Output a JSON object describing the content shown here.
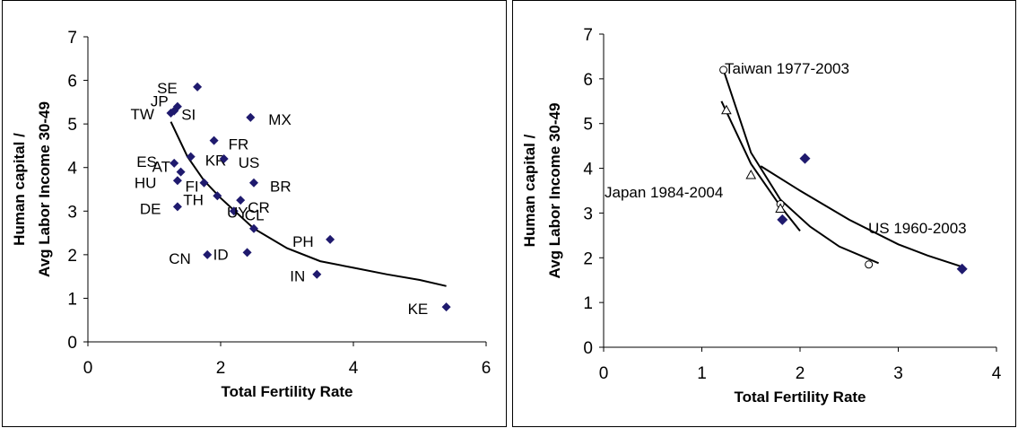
{
  "chart_data": [
    {
      "type": "scatter",
      "xlabel": "Total Fertility Rate",
      "ylabel_lines": [
        "Human capital /",
        "Avg Labor Income 30-49"
      ],
      "xlim": [
        0,
        6
      ],
      "ylim": [
        0,
        7
      ],
      "xticks": [
        "0",
        "2",
        "4",
        "6"
      ],
      "yticks": [
        "0",
        "1",
        "2",
        "3",
        "4",
        "5",
        "6",
        "7"
      ],
      "grid": false,
      "marker_color": "#1f1a6e",
      "points": [
        {
          "label": "SE",
          "x": 1.65,
          "y": 5.85
        },
        {
          "label": "JP",
          "x": 1.35,
          "y": 5.4
        },
        {
          "label": "TW",
          "x": 1.25,
          "y": 5.25
        },
        {
          "label": "SI",
          "x": 1.3,
          "y": 5.3
        },
        {
          "label": "MX",
          "x": 2.45,
          "y": 5.15
        },
        {
          "label": "FR",
          "x": 1.9,
          "y": 4.62
        },
        {
          "label": "KR",
          "x": 1.55,
          "y": 4.25
        },
        {
          "label": "US",
          "x": 2.05,
          "y": 4.2
        },
        {
          "label": "ES",
          "x": 1.3,
          "y": 4.1
        },
        {
          "label": "AT",
          "x": 1.4,
          "y": 3.9
        },
        {
          "label": "HU",
          "x": 1.35,
          "y": 3.7
        },
        {
          "label": "FI",
          "x": 1.75,
          "y": 3.65
        },
        {
          "label": "BR",
          "x": 2.5,
          "y": 3.65
        },
        {
          "label": "TH",
          "x": 1.95,
          "y": 3.35
        },
        {
          "label": "CR",
          "x": 2.3,
          "y": 3.25
        },
        {
          "label": "DE",
          "x": 1.35,
          "y": 3.1
        },
        {
          "label": "CL",
          "x": 2.2,
          "y": 3.0
        },
        {
          "label": "UY",
          "x": 2.5,
          "y": 2.6
        },
        {
          "label": "PH",
          "x": 3.65,
          "y": 2.35
        },
        {
          "label": "ID",
          "x": 2.4,
          "y": 2.05
        },
        {
          "label": "CN",
          "x": 1.8,
          "y": 2.0
        },
        {
          "label": "IN",
          "x": 3.45,
          "y": 1.55
        },
        {
          "label": "KE",
          "x": 5.4,
          "y": 0.8
        }
      ],
      "fit_line": [
        {
          "x": 1.25,
          "y": 5.05
        },
        {
          "x": 1.5,
          "y": 4.25
        },
        {
          "x": 1.75,
          "y": 3.7
        },
        {
          "x": 2.0,
          "y": 3.3
        },
        {
          "x": 2.5,
          "y": 2.6
        },
        {
          "x": 3.0,
          "y": 2.15
        },
        {
          "x": 3.5,
          "y": 1.85
        },
        {
          "x": 4.0,
          "y": 1.7
        },
        {
          "x": 4.5,
          "y": 1.55
        },
        {
          "x": 5.0,
          "y": 1.42
        },
        {
          "x": 5.4,
          "y": 1.28
        }
      ]
    },
    {
      "type": "scatter",
      "xlabel": "Total Fertility Rate",
      "ylabel_lines": [
        "Human capital /",
        "Avg Labor Income 30-49"
      ],
      "xlim": [
        0,
        4
      ],
      "ylim": [
        0,
        7
      ],
      "xticks": [
        "0",
        "1",
        "2",
        "3",
        "4"
      ],
      "yticks": [
        "0",
        "1",
        "2",
        "3",
        "4",
        "5",
        "6",
        "7"
      ],
      "grid": false,
      "marker_color": "#1f1a6e",
      "series": [
        {
          "name": "Taiwan 1977-2003",
          "marker": "circle",
          "points": [
            {
              "x": 1.22,
              "y": 6.2
            },
            {
              "x": 1.8,
              "y": 3.2
            },
            {
              "x": 2.7,
              "y": 1.85
            }
          ],
          "fit_line": [
            {
              "x": 1.22,
              "y": 6.2
            },
            {
              "x": 1.5,
              "y": 4.35
            },
            {
              "x": 1.8,
              "y": 3.3
            },
            {
              "x": 2.1,
              "y": 2.7
            },
            {
              "x": 2.4,
              "y": 2.25
            },
            {
              "x": 2.8,
              "y": 1.88
            }
          ]
        },
        {
          "name": "Japan 1984-2004",
          "marker": "triangle",
          "points": [
            {
              "x": 1.25,
              "y": 5.3
            },
            {
              "x": 1.5,
              "y": 3.85
            },
            {
              "x": 1.8,
              "y": 3.1
            }
          ],
          "fit_line": [
            {
              "x": 1.2,
              "y": 5.5
            },
            {
              "x": 1.5,
              "y": 4.1
            },
            {
              "x": 1.8,
              "y": 3.15
            },
            {
              "x": 2.0,
              "y": 2.6
            }
          ]
        },
        {
          "name": "US 1960-2003",
          "marker": "diamond",
          "points": [
            {
              "x": 2.05,
              "y": 4.22
            },
            {
              "x": 1.82,
              "y": 2.85
            },
            {
              "x": 3.65,
              "y": 1.75
            }
          ],
          "fit_line": [
            {
              "x": 1.6,
              "y": 4.05
            },
            {
              "x": 2.0,
              "y": 3.5
            },
            {
              "x": 2.5,
              "y": 2.85
            },
            {
              "x": 3.0,
              "y": 2.3
            },
            {
              "x": 3.3,
              "y": 2.05
            },
            {
              "x": 3.65,
              "y": 1.8
            }
          ]
        }
      ]
    }
  ]
}
